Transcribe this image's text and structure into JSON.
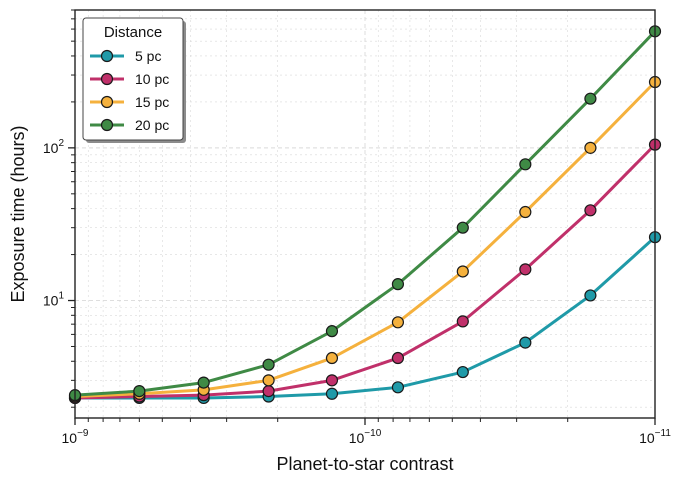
{
  "chart_data": {
    "type": "line",
    "xlabel": "Planet-to-star contrast",
    "ylabel": "Exposure time (hours)",
    "x_scale": "log",
    "y_scale": "log",
    "x_axis_inverted": true,
    "xlim": [
      1e-09,
      1e-11
    ],
    "ylim": [
      1.7,
      800
    ],
    "x_tick_labels": [
      {
        "value": 1e-09,
        "base": "10",
        "exp": "−9"
      },
      {
        "value": 1e-10,
        "base": "10",
        "exp": "−10"
      },
      {
        "value": 1e-11,
        "base": "10",
        "exp": "−11"
      }
    ],
    "y_tick_labels": [
      {
        "value": 10,
        "base": "10",
        "exp": "1"
      },
      {
        "value": 100,
        "base": "10",
        "exp": "2"
      }
    ],
    "grid": true,
    "legend": {
      "title": "Distance",
      "position": "top-left"
    },
    "x": [
      1e-09,
      6e-10,
      3.6e-10,
      2.15e-10,
      1.3e-10,
      7.7e-11,
      4.6e-11,
      2.8e-11,
      1.67e-11,
      1e-11
    ],
    "series": [
      {
        "name": "5 pc",
        "color": "#1f9aa8",
        "values": [
          2.3,
          2.3,
          2.3,
          2.35,
          2.45,
          2.7,
          3.4,
          5.3,
          10.8,
          26.0
        ]
      },
      {
        "name": "10 pc",
        "color": "#c0306a",
        "values": [
          2.3,
          2.35,
          2.4,
          2.55,
          3.0,
          4.2,
          7.3,
          16.0,
          39.0,
          105.0
        ]
      },
      {
        "name": "15 pc",
        "color": "#f5b13d",
        "values": [
          2.35,
          2.45,
          2.6,
          3.0,
          4.2,
          7.2,
          15.5,
          38.0,
          100.0,
          270.0
        ]
      },
      {
        "name": "20 pc",
        "color": "#3f8a45",
        "values": [
          2.4,
          2.55,
          2.9,
          3.8,
          6.3,
          12.8,
          30.0,
          78.0,
          210.0,
          580.0
        ]
      }
    ]
  }
}
